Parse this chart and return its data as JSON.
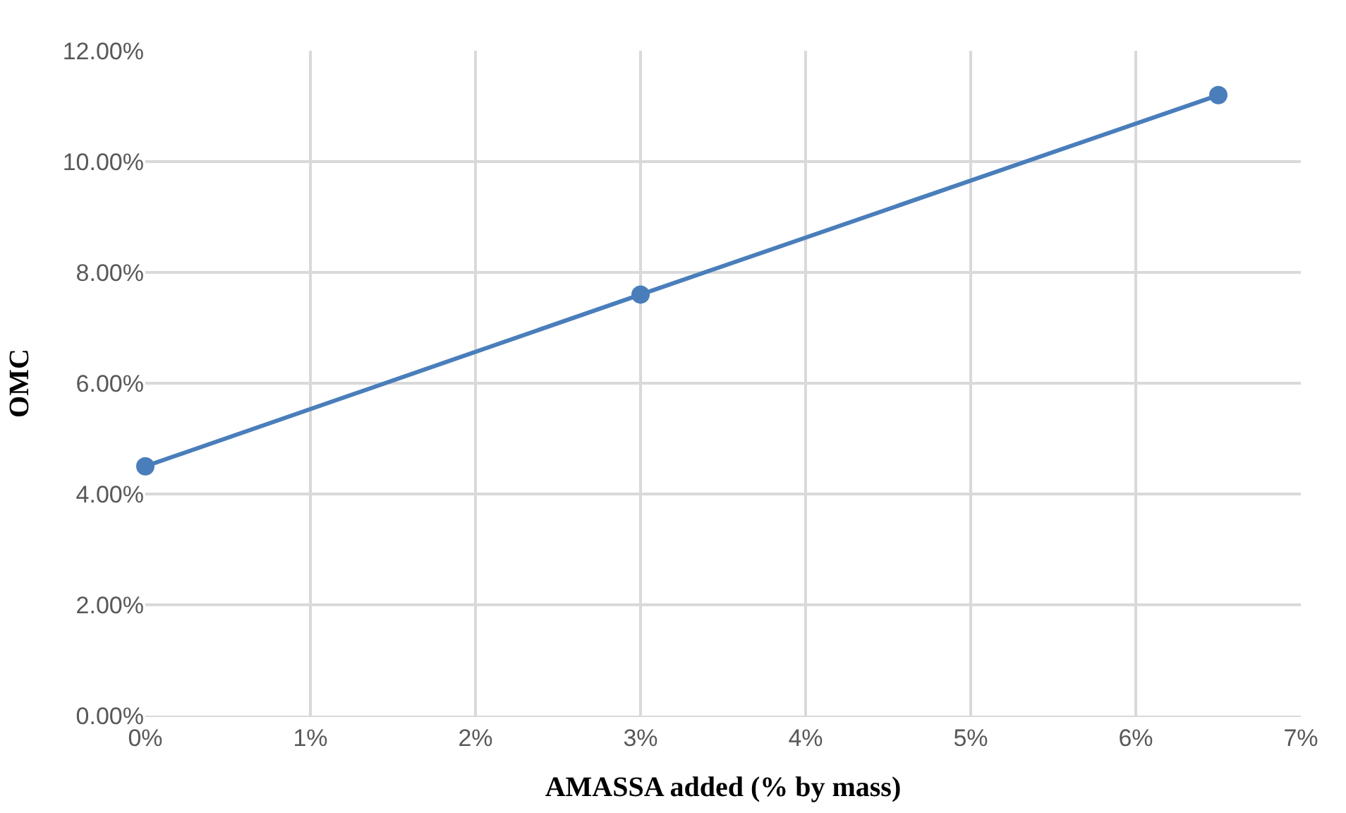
{
  "chart_data": {
    "type": "line",
    "xlabel": "AMASSA added (% by mass)",
    "ylabel": "OMC",
    "x": [
      0,
      3,
      6.5
    ],
    "series": [
      {
        "color": "#4a7ebb",
        "values": [
          4.5,
          7.6,
          11.2
        ]
      }
    ],
    "xlim": [
      0,
      7
    ],
    "xticks": [
      {
        "value": 0,
        "label": "0%"
      },
      {
        "value": 1,
        "label": "1%"
      },
      {
        "value": 2,
        "label": "2%"
      },
      {
        "value": 3,
        "label": "3%"
      },
      {
        "value": 4,
        "label": "4%"
      },
      {
        "value": 5,
        "label": "5%"
      },
      {
        "value": 6,
        "label": "6%"
      },
      {
        "value": 7,
        "label": "7%"
      }
    ],
    "ylim": [
      0,
      12
    ],
    "yticks": [
      {
        "value": 0,
        "label": "0.00%"
      },
      {
        "value": 2,
        "label": "2.00%"
      },
      {
        "value": 4,
        "label": "4.00%"
      },
      {
        "value": 6,
        "label": "6.00%"
      },
      {
        "value": 8,
        "label": "8.00%"
      },
      {
        "value": 10,
        "label": "10.00%"
      },
      {
        "value": 12,
        "label": "12.00%"
      }
    ],
    "grid": true,
    "marker": "circle",
    "line_style": "solid"
  }
}
